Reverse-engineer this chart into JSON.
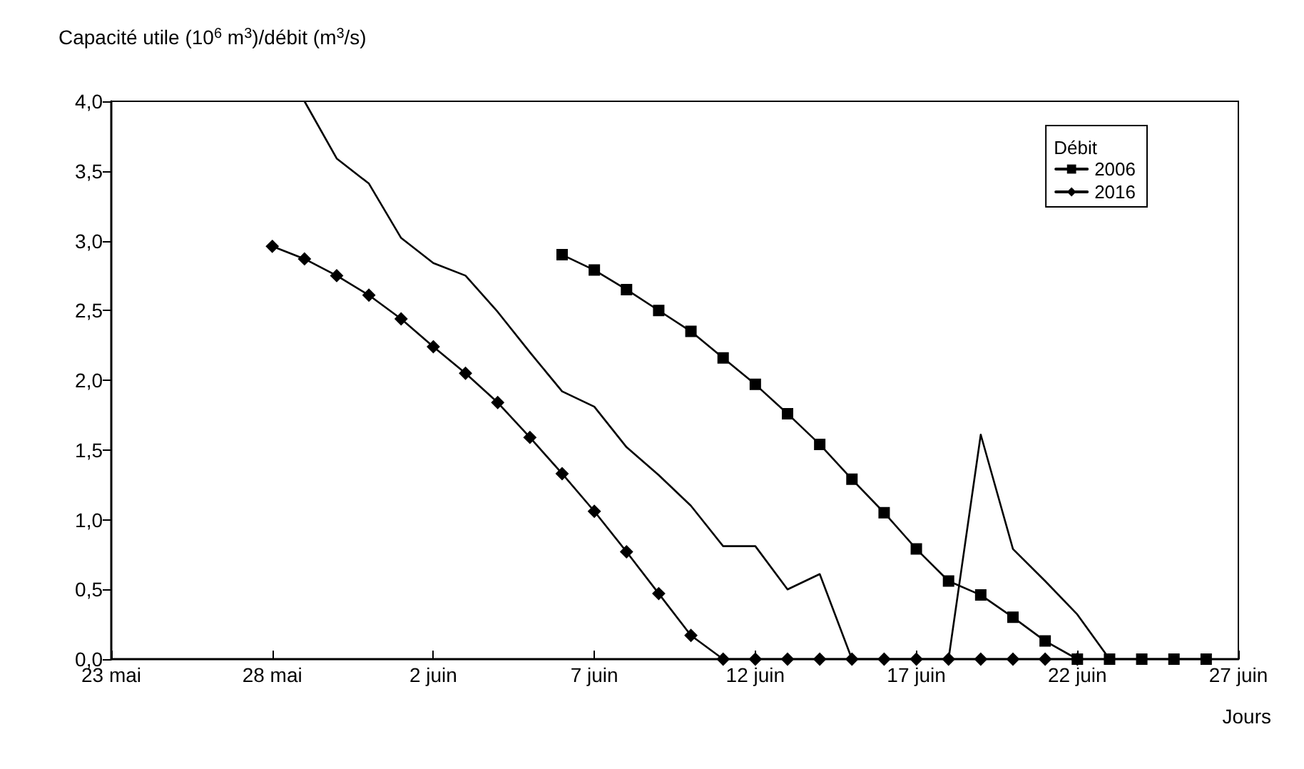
{
  "chart_data": {
    "type": "line",
    "ylabel": "Capacité utile (10$^{6}$ m$^{3}$)/débit (m$^{3}$/s)",
    "xlabel": "Jours",
    "legend_title": "Débit",
    "legend": "top right",
    "grid": false,
    "line_style": "solid",
    "xlim": [
      "--05-23",
      "--06-27"
    ],
    "xticks": [
      {
        "value": "--05-23",
        "label": "23 mai"
      },
      {
        "value": "--05-28",
        "label": "28 mai"
      },
      {
        "value": "--06-02",
        "label": "2 juin"
      },
      {
        "value": "--06-07",
        "label": "7 juin"
      },
      {
        "value": "--06-12",
        "label": "12 juin"
      },
      {
        "value": "--06-17",
        "label": "17 juin"
      },
      {
        "value": "--06-22",
        "label": "22 juin"
      },
      {
        "value": "--06-27",
        "label": "27 juin"
      }
    ],
    "ylim": [
      0,
      4
    ],
    "yticks": [
      {
        "value": 0,
        "label": "0,0"
      },
      {
        "value": 0.5,
        "label": "0,5"
      },
      {
        "value": 1,
        "label": "1,0"
      },
      {
        "value": 1.5,
        "label": "1,5"
      },
      {
        "value": 2,
        "label": "2,0"
      },
      {
        "value": 2.5,
        "label": "2,5"
      },
      {
        "value": 3,
        "label": "3,0"
      },
      {
        "value": 3.5,
        "label": "3,5"
      },
      {
        "value": 4,
        "label": "4,0"
      }
    ],
    "series": [
      {
        "color": "#000000",
        "marker": "none",
        "x": [
          "--05-29",
          "--05-30",
          "--05-31",
          "--06-01",
          "--06-02",
          "--06-03",
          "--06-04",
          "--06-05",
          "--06-06",
          "--06-07",
          "--06-08",
          "--06-09",
          "--06-10",
          "--06-11",
          "--06-12",
          "--06-13",
          "--06-14",
          "--06-15",
          "--06-16",
          "--06-17",
          "--06-18",
          "--06-19",
          "--06-20",
          "--06-21",
          "--06-22",
          "--06-23",
          "--06-24",
          "--06-25",
          "--06-26"
        ],
        "values": [
          4.0,
          3.59,
          3.41,
          3.02,
          2.84,
          2.75,
          2.49,
          2.2,
          1.92,
          1.81,
          1.52,
          1.32,
          1.1,
          0.81,
          0.81,
          0.5,
          0.61,
          0,
          0,
          0,
          0,
          1.61,
          0.79,
          0.56,
          0.32,
          0,
          0,
          0,
          0
        ]
      },
      {
        "name": "2006",
        "color": "#000000",
        "marker": "square",
        "x": [
          "--06-06",
          "--06-07",
          "--06-08",
          "--06-09",
          "--06-10",
          "--06-11",
          "--06-12",
          "--06-13",
          "--06-14",
          "--06-15",
          "--06-16",
          "--06-17",
          "--06-18",
          "--06-19",
          "--06-20",
          "--06-21",
          "--06-22",
          "--06-23",
          "--06-24",
          "--06-25",
          "--06-26"
        ],
        "values": [
          2.9,
          2.79,
          2.65,
          2.5,
          2.35,
          2.16,
          1.97,
          1.76,
          1.54,
          1.29,
          1.05,
          0.79,
          0.56,
          0.46,
          0.3,
          0.13,
          0,
          0,
          0,
          0,
          0
        ]
      },
      {
        "name": "2016",
        "color": "#000000",
        "marker": "diamond",
        "x": [
          "--05-28",
          "--05-29",
          "--05-30",
          "--05-31",
          "--06-01",
          "--06-02",
          "--06-03",
          "--06-04",
          "--06-05",
          "--06-06",
          "--06-07",
          "--06-08",
          "--06-09",
          "--06-10",
          "--06-11",
          "--06-12",
          "--06-13",
          "--06-14",
          "--06-15",
          "--06-16",
          "--06-17",
          "--06-18",
          "--06-19",
          "--06-20",
          "--06-21",
          "--06-22"
        ],
        "values": [
          2.96,
          2.87,
          2.75,
          2.61,
          2.44,
          2.24,
          2.05,
          1.84,
          1.59,
          1.33,
          1.06,
          0.77,
          0.47,
          0.17,
          0,
          0,
          0,
          0,
          0,
          0,
          0,
          0,
          0,
          0,
          0,
          0
        ]
      }
    ]
  }
}
